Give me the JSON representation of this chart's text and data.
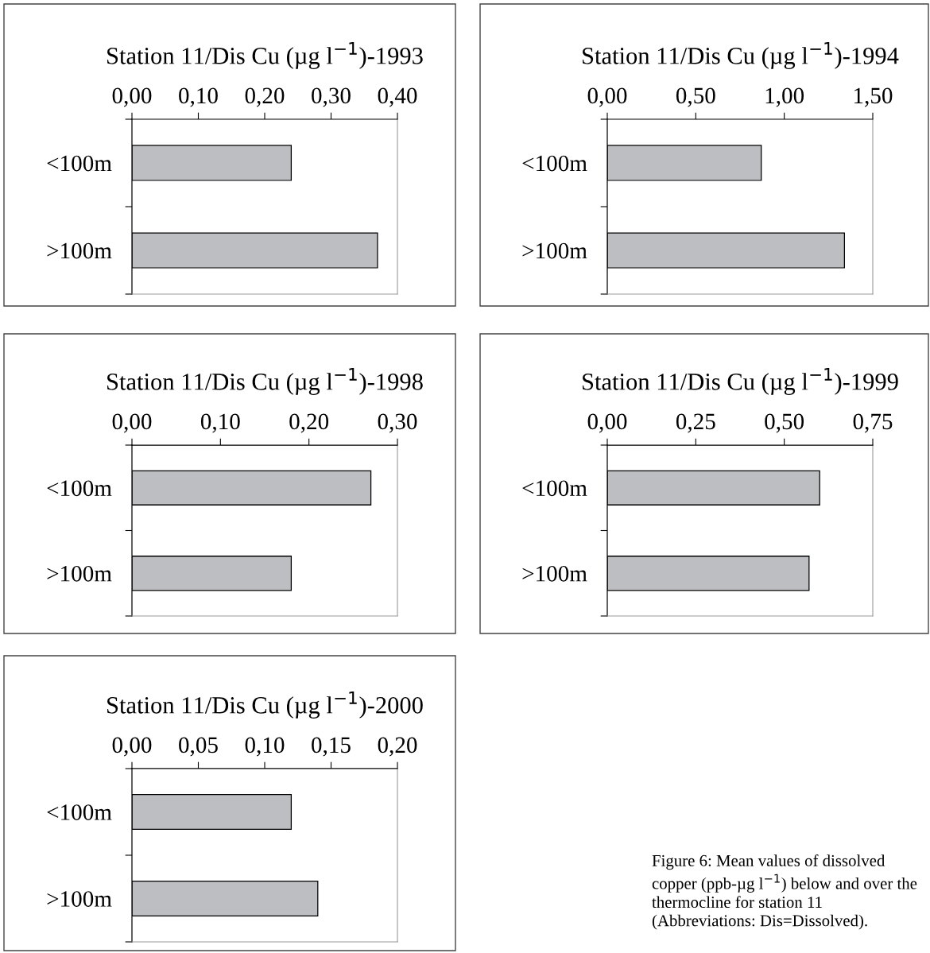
{
  "chart_data": [
    {
      "type": "bar",
      "orientation": "horizontal",
      "title": "Station 11/Dis Cu (µg l$^{−1}$)-1993",
      "categories": [
        "<100m",
        ">100m"
      ],
      "values": [
        0.24,
        0.37
      ],
      "color": "#bdbec2",
      "xlim": [
        0,
        0.4
      ],
      "xticks": [
        {
          "value": 0,
          "label": "0,00"
        },
        {
          "value": 0.1,
          "label": "0,10"
        },
        {
          "value": 0.2,
          "label": "0,20"
        },
        {
          "value": 0.3,
          "label": "0,30"
        },
        {
          "value": 0.4,
          "label": "0,40"
        }
      ],
      "grid": false,
      "legend": false
    },
    {
      "type": "bar",
      "orientation": "horizontal",
      "title": "Station 11/Dis Cu (µg l$^{−1}$)-1994",
      "categories": [
        "<100m",
        ">100m"
      ],
      "values": [
        0.87,
        1.34
      ],
      "color": "#bdbec2",
      "xlim": [
        0,
        1.5
      ],
      "xticks": [
        {
          "value": 0,
          "label": "0,00"
        },
        {
          "value": 0.5,
          "label": "0,50"
        },
        {
          "value": 1.0,
          "label": "1,00"
        },
        {
          "value": 1.5,
          "label": "1,50"
        }
      ],
      "grid": false,
      "legend": false
    },
    {
      "type": "bar",
      "orientation": "horizontal",
      "title": "Station 11/Dis Cu (µg l$^{−1}$)-1998",
      "categories": [
        "<100m",
        ">100m"
      ],
      "values": [
        0.27,
        0.18
      ],
      "color": "#bdbec2",
      "xlim": [
        0,
        0.3
      ],
      "xticks": [
        {
          "value": 0,
          "label": "0,00"
        },
        {
          "value": 0.1,
          "label": "0,10"
        },
        {
          "value": 0.2,
          "label": "0,20"
        },
        {
          "value": 0.3,
          "label": "0,30"
        }
      ],
      "grid": false,
      "legend": false
    },
    {
      "type": "bar",
      "orientation": "horizontal",
      "title": "Station 11/Dis Cu (µg l$^{−1}$)-1999",
      "categories": [
        "<100m",
        ">100m"
      ],
      "values": [
        0.6,
        0.57
      ],
      "color": "#bdbec2",
      "xlim": [
        0,
        0.75
      ],
      "xticks": [
        {
          "value": 0,
          "label": "0,00"
        },
        {
          "value": 0.25,
          "label": "0,25"
        },
        {
          "value": 0.5,
          "label": "0,50"
        },
        {
          "value": 0.75,
          "label": "0,75"
        }
      ],
      "grid": false,
      "legend": false
    },
    {
      "type": "bar",
      "orientation": "horizontal",
      "title": "Station 11/Dis Cu (µg l$^{−1}$)-2000",
      "categories": [
        "<100m",
        ">100m"
      ],
      "values": [
        0.12,
        0.14
      ],
      "color": "#bdbec2",
      "xlim": [
        0,
        0.2
      ],
      "xticks": [
        {
          "value": 0,
          "label": "0,00"
        },
        {
          "value": 0.05,
          "label": "0,05"
        },
        {
          "value": 0.1,
          "label": "0,10"
        },
        {
          "value": 0.15,
          "label": "0,15"
        },
        {
          "value": 0.2,
          "label": "0,20"
        }
      ],
      "grid": false,
      "legend": false,
      "annotations": [
        "Figure 6: Mean values of dissolved copper (ppb-µg l$^{−1}$) below and over the thermocline for station 11 (Abbreviations: Dis=Dissolved)."
      ]
    }
  ]
}
